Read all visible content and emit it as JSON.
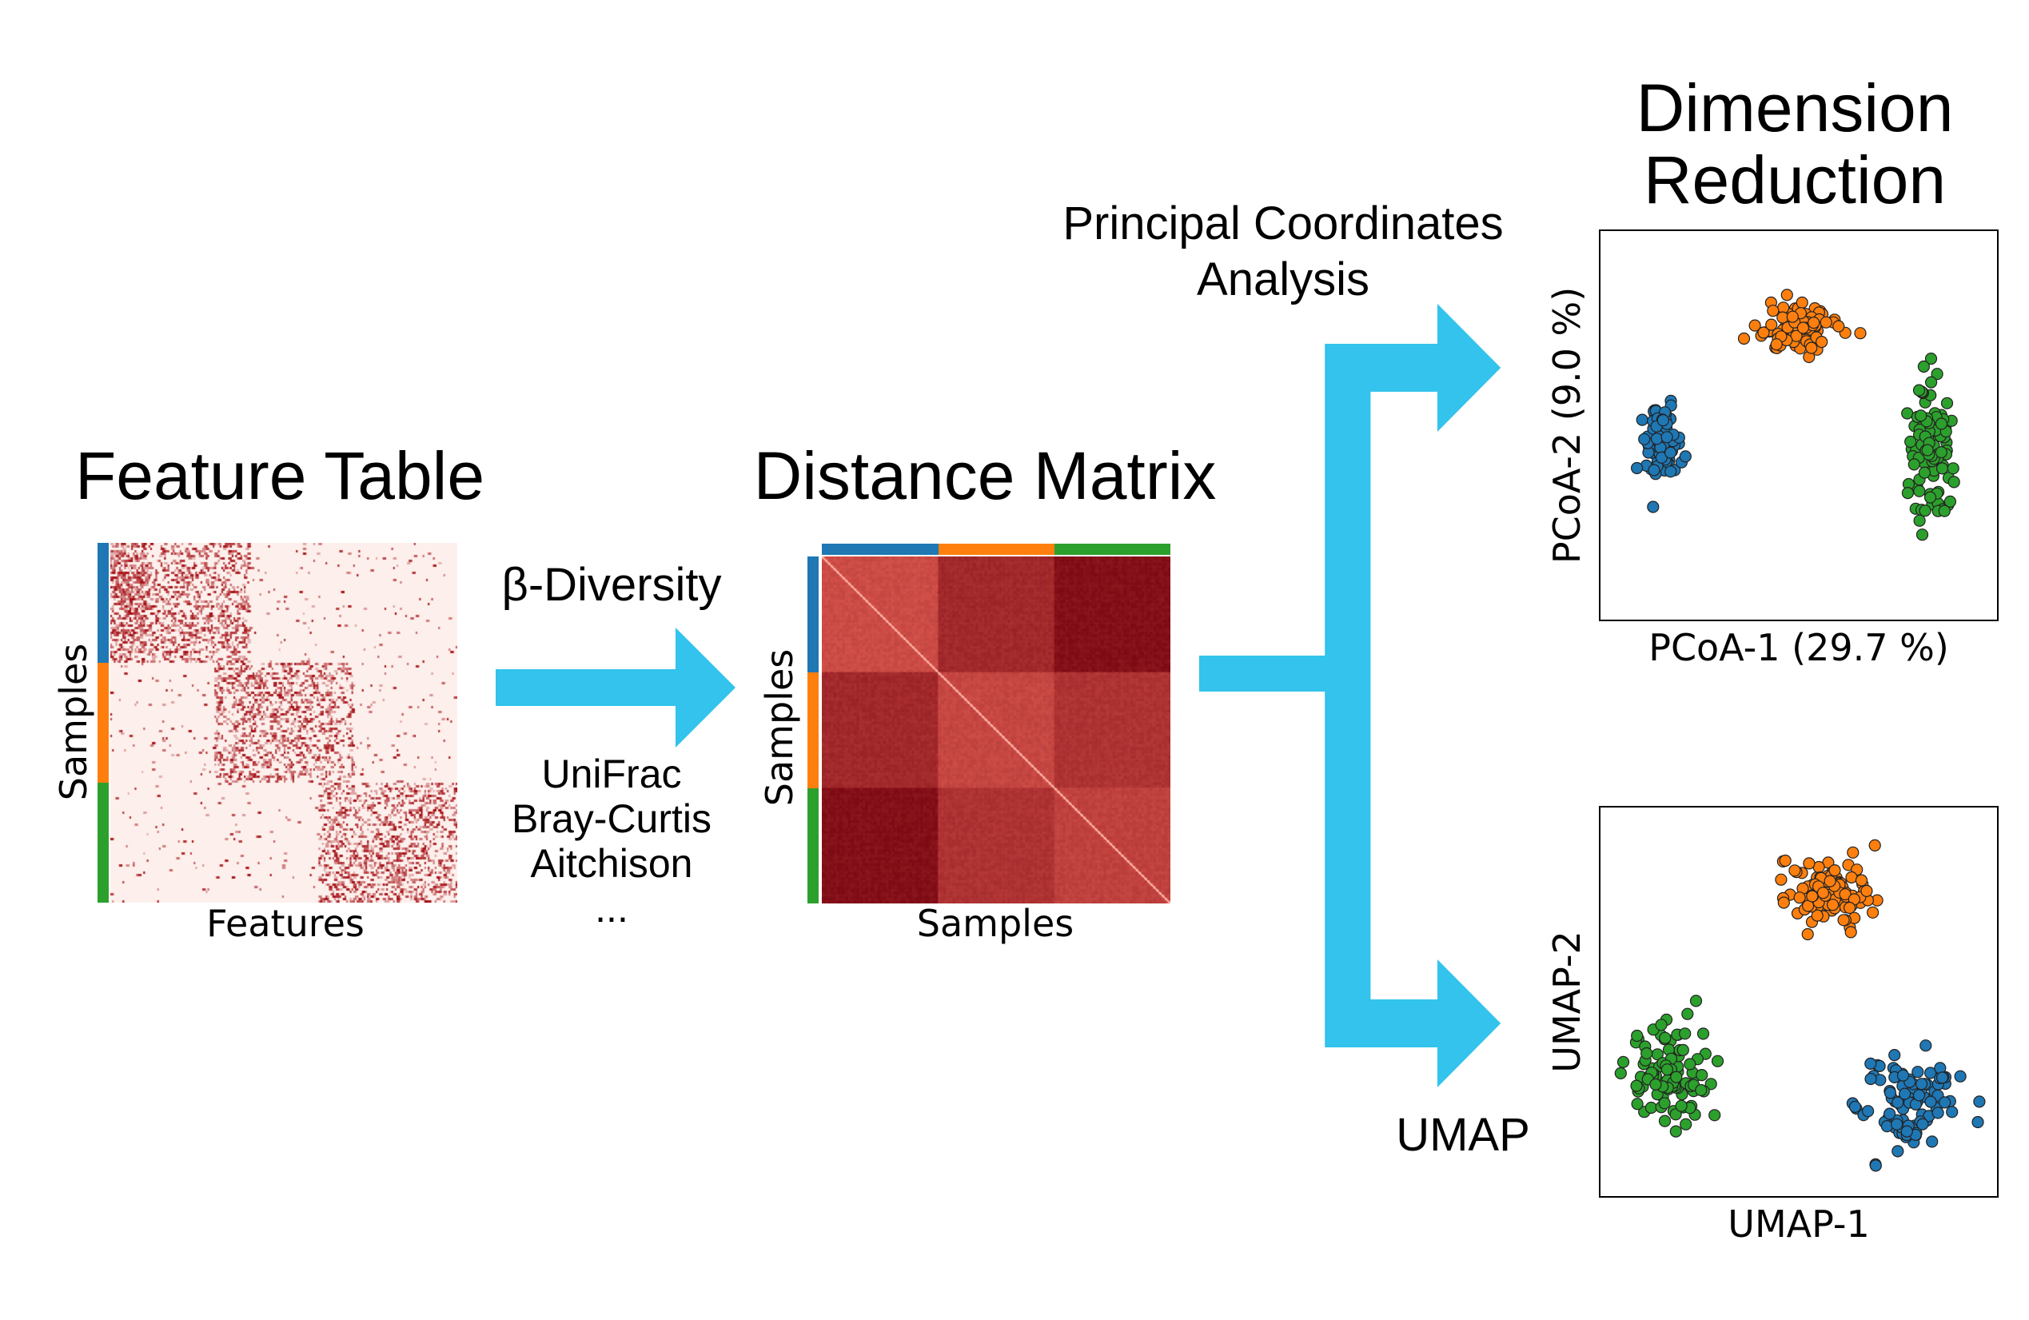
{
  "feature_table": {
    "title": "Feature Table",
    "xlabel": "Features",
    "ylabel": "Samples"
  },
  "beta_diversity": {
    "label": "β-Diversity",
    "metrics": [
      "UniFrac",
      "Bray-Curtis",
      "Aitchison",
      "..."
    ]
  },
  "distance_matrix": {
    "title": "Distance Matrix",
    "xlabel": "Samples",
    "ylabel": "Samples"
  },
  "dimension_reduction": {
    "title_line1": "Dimension",
    "title_line2": "Reduction",
    "pcoa_label_line1": "Principal Coordinates",
    "pcoa_label_line2": "Analysis",
    "umap_label": "UMAP"
  },
  "colors": {
    "group1": "#1f77b4",
    "group2": "#ff7f0e",
    "group3": "#2ca02c",
    "arrow": "#33c3ec",
    "heat_light": "#fdf0ec",
    "heat_dark": "#a50f15"
  },
  "chart_data": [
    {
      "type": "scatter",
      "name": "pcoa",
      "xlabel": "PCoA-1 (29.7 %)",
      "ylabel": "PCoA-2 (9.0 %)",
      "xlim": [
        -1,
        1
      ],
      "ylim": [
        -1,
        1
      ],
      "grid": false,
      "ticks": false,
      "clusters": [
        {
          "group": "group1",
          "cx": -0.75,
          "cy": -0.1,
          "sx": 0.05,
          "sy": 0.12,
          "n": 100
        },
        {
          "group": "group2",
          "cx": 0.0,
          "cy": 0.55,
          "sx": 0.1,
          "sy": 0.08,
          "n": 100
        },
        {
          "group": "group3",
          "cx": 0.72,
          "cy": -0.15,
          "sx": 0.06,
          "sy": 0.2,
          "n": 100
        }
      ]
    },
    {
      "type": "scatter",
      "name": "umap",
      "xlabel": "UMAP-1",
      "ylabel": "UMAP-2",
      "xlim": [
        -1,
        1
      ],
      "ylim": [
        -1,
        1
      ],
      "grid": false,
      "ticks": false,
      "clusters": [
        {
          "group": "group2",
          "cx": 0.15,
          "cy": 0.62,
          "sx": 0.12,
          "sy": 0.1,
          "n": 100
        },
        {
          "group": "group3",
          "cx": -0.72,
          "cy": -0.38,
          "sx": 0.12,
          "sy": 0.14,
          "n": 100
        },
        {
          "group": "group1",
          "cx": 0.62,
          "cy": -0.55,
          "sx": 0.13,
          "sy": 0.13,
          "n": 100
        }
      ]
    }
  ]
}
